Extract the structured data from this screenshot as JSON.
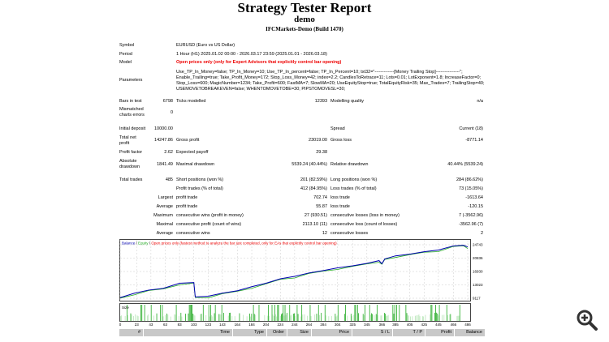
{
  "header": {
    "title": "Strategy Tester Report",
    "subtitle": "demo",
    "server": "IFCMarkets-Demo (Build 1470)"
  },
  "info": {
    "symbol_label": "Symbol",
    "symbol": "EURUSD (Euro vs US Dollar)",
    "period_label": "Period",
    "period": "1 Hour (H1) 2025.01.02 00:00 - 2026.03.17 23:59 (2025.01.01 - 2026.03.18)",
    "model_label": "Model",
    "model": "Open prices only (only for Expert Advisors that explicitly control bar opening)",
    "parameters_label": "Parameters",
    "parameters": "Use_TP_In_Money=false; TP_In_Money=10; Use_TP_In_percent=false; TP_In_Percent=10; txt32=\"-------------[Money Trailing Stop]----------------\"; Enable_Trailing=true; Take_Profit_Money=172; Stop_Loss_Money=42; index=2.2; CandlesToRetrace=11; Lots=0.01; LotExponent=1.8; IncreaseFactor=0; Stop_Loss=600; MagicNumber=1234; Take_Profit=600; FastMA=7; SlowMA=20; UseEquityStop=true; TotalEquityRisk=35; Max_Trades=7; TrailingStop=40; USEMOVETOBREAKEVEN=false; WHENTOMOVETOBE=30; PIPSTOMOVESL=30;",
    "bars_label": "Bars in test",
    "bars": "6798",
    "ticks_label": "Ticks modelled",
    "ticks": "12393",
    "quality_label": "Modelling quality",
    "quality": "n/a",
    "mismatch_label_1": "Mismatched",
    "mismatch_label_2": "charts errors",
    "mismatch": "0"
  },
  "stats": {
    "deposit_label": "Initial deposit",
    "deposit": "10000.00",
    "spread_label": "Spread",
    "spread": "Current (18)",
    "net_label_1": "Total net",
    "net_label_2": "profit",
    "net": "14247.86",
    "gross_profit_label": "Gross profit",
    "gross_profit": "23019.00",
    "gross_loss_label": "Gross loss",
    "gross_loss": "-8771.14",
    "pf_label": "Profit factor",
    "pf": "2.62",
    "payoff_label": "Expected payoff",
    "payoff": "29.38",
    "abs_dd_label_1": "Absolute",
    "abs_dd_label_2": "drawdown",
    "abs_dd": "1841.49",
    "max_dd_label": "Maximal drawdown",
    "max_dd": "5539.24 (40.44%)",
    "rel_dd_label": "Relative drawdown",
    "rel_dd": "40.44% (5539.24)",
    "trades_label": "Total trades",
    "trades": "485",
    "short_label": "Short positions (won %)",
    "short": "201 (82.59%)",
    "long_label": "Long positions (won %)",
    "long": "284 (86.62%)",
    "pt_label": "Profit trades (% of total)",
    "pt": "412 (84.95%)",
    "lt_label": "Loss trades (% of total)",
    "lt": "73 (15.05%)",
    "largest": "Largest",
    "largest_pt_label": "profit trade",
    "largest_pt": "702.74",
    "largest_lt_label": "loss trade",
    "largest_lt": "-1613.64",
    "average": "Average",
    "avg_pt_label": "profit trade",
    "avg_pt": "55.87",
    "avg_lt_label": "loss trade",
    "avg_lt": "-120.15",
    "maximum": "Maximum",
    "max_cw_label": "consecutive wins (profit in money)",
    "max_cw": "27 (930.51)",
    "max_cl_label": "consecutive losses (loss in money)",
    "max_cl": "7 (-3562.96)",
    "maximal": "Maximal",
    "mx_cp_label": "consecutive profit (count of wins)",
    "mx_cp": "2113.10 (11)",
    "mx_cl_label": "consecutive loss (count of losses)",
    "mx_cl": "-3562.96 (7)",
    "average2": "Average",
    "avg_cw_label": "consecutive wins",
    "avg_cw": "12",
    "avg_cl_label": "consecutive losses",
    "avg_cl": "2"
  },
  "chart_data": {
    "type": "line",
    "legend_balance": "Balance",
    "legend_sep1": " / ",
    "legend_equity": "Equity",
    "legend_sep2": " / ",
    "legend_note": "Open prices only (fastest method to analyze the bar just completed, only for EAs that explicitly control bar opening)",
    "size_label": "Size",
    "ylim": [
      9117,
      24743
    ],
    "yticks": [
      "24743",
      "20836",
      "16930",
      "13023",
      "9117"
    ],
    "xticks": [
      "0",
      "23",
      "43",
      "63",
      "83",
      "103",
      "123",
      "143",
      "164",
      "184",
      "204",
      "224",
      "244",
      "264",
      "284",
      "304",
      "325",
      "345",
      "366",
      "385",
      "405",
      "425",
      "445",
      "466",
      "486"
    ],
    "xlim": [
      0,
      486
    ],
    "balance": [
      [
        0,
        9300
      ],
      [
        20,
        10600
      ],
      [
        40,
        11500
      ],
      [
        60,
        12000
      ],
      [
        83,
        13500
      ],
      [
        103,
        13700
      ],
      [
        105,
        9500
      ],
      [
        123,
        9700
      ],
      [
        143,
        10600
      ],
      [
        164,
        11300
      ],
      [
        184,
        12500
      ],
      [
        204,
        13500
      ],
      [
        224,
        14800
      ],
      [
        244,
        15500
      ],
      [
        264,
        16500
      ],
      [
        284,
        17200
      ],
      [
        304,
        18000
      ],
      [
        325,
        18600
      ],
      [
        345,
        19300
      ],
      [
        362,
        20100
      ],
      [
        366,
        19200
      ],
      [
        370,
        20600
      ],
      [
        385,
        21500
      ],
      [
        405,
        22000
      ],
      [
        425,
        22700
      ],
      [
        445,
        23200
      ],
      [
        466,
        24400
      ],
      [
        480,
        24600
      ],
      [
        486,
        24100
      ]
    ],
    "colors": {
      "balance": "#0000b0",
      "equity": "#22aa22",
      "size": "#22aa22"
    }
  },
  "table": {
    "headers": [
      "#",
      "Time",
      "Type",
      "Order",
      "Size",
      "Price",
      "S / L",
      "T / P",
      "Profit",
      "Balance"
    ]
  }
}
